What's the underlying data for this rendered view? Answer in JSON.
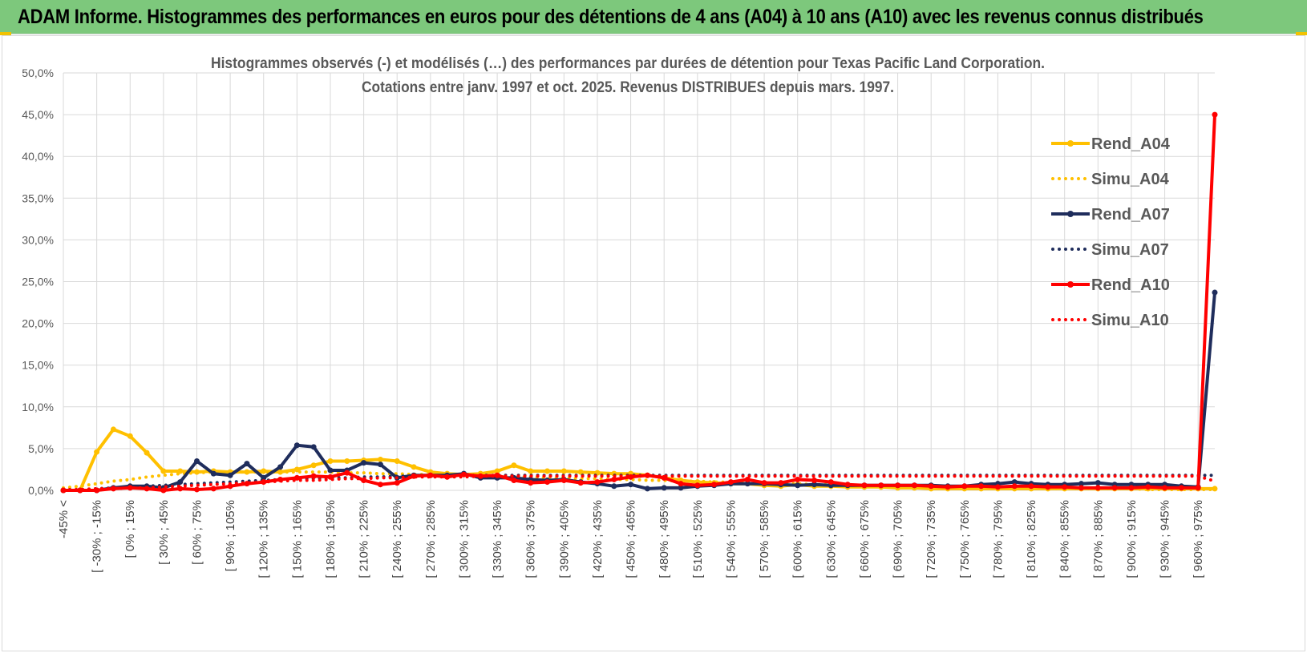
{
  "banner": {
    "title": "ADAM Informe. Histogrammes des performances en euros pour des détentions de 4 ans (A04) à 10 ans (A10) avec les revenus connus distribués"
  },
  "colors": {
    "banner_bg": "#7dc87c",
    "A04": "#ffc000",
    "A07": "#1f2d5c",
    "A10": "#ff0000",
    "grid": "#d9d9d9"
  },
  "chart_data": {
    "type": "line",
    "title_lines": [
      "Histogrammes observés (-) et modélisés (…) des performances par durées de détention pour Texas Pacific Land Corporation.",
      "Cotations entre janv. 1997 et oct. 2025.  Revenus DISTRIBUES depuis mars. 1997."
    ],
    "ylim": [
      0,
      50
    ],
    "y_ticks": [
      0,
      5,
      10,
      15,
      20,
      25,
      30,
      35,
      40,
      45,
      50
    ],
    "y_tick_labels": [
      "0,0%",
      "5,0%",
      "10,0%",
      "15,0%",
      "20,0%",
      "25,0%",
      "30,0%",
      "35,0%",
      "40,0%",
      "45,0%",
      "50,0%"
    ],
    "category_labels": [
      "-45% <",
      "[ -30% ; -15%",
      "[ 0% ; 15%",
      "[ 30% ; 45%",
      "[ 60% ; 75%",
      "[ 90% ; 105%",
      "[ 120% ; 135%",
      "[ 150% ; 165%",
      "[ 180% ; 195%",
      "[ 210% ; 225%",
      "[ 240% ; 255%",
      "[ 270% ; 285%",
      "[ 300% ; 315%",
      "[ 330% ; 345%",
      "[ 360% ; 375%",
      "[ 390% ; 405%",
      "[ 420% ; 435%",
      "[ 450% ; 465%",
      "[ 480% ; 495%",
      "[ 510% ; 525%",
      "[ 540% ; 555%",
      "[ 570% ; 585%",
      "[ 600% ; 615%",
      "[ 630% ; 645%",
      "[ 660% ; 675%",
      "[ 690% ; 705%",
      "[ 720% ; 735%",
      "[ 750% ; 765%",
      "[ 780% ; 795%",
      "[ 810% ; 825%",
      "[ 840% ; 855%",
      "[ 870% ; 885%",
      "[ 900% ; 915%",
      "[ 930% ; 945%",
      "[ 960% ; 975%"
    ],
    "n_points": 70,
    "series": [
      {
        "name": "Rend_A04",
        "style": "solid",
        "color": "#ffc000",
        "values": [
          0,
          0,
          4.6,
          7.3,
          6.5,
          4.5,
          2.3,
          2.3,
          2.2,
          2.3,
          2.2,
          2.2,
          2.3,
          2.2,
          2.5,
          3.0,
          3.5,
          3.5,
          3.6,
          3.7,
          3.5,
          2.8,
          2.2,
          2.0,
          1.9,
          2.0,
          2.3,
          3.0,
          2.3,
          2.3,
          2.3,
          2.2,
          2.1,
          2.0,
          2.0,
          1.8,
          1.5,
          1.2,
          1.0,
          0.9,
          0.8,
          0.8,
          0.6,
          0.5,
          0.7,
          0.5,
          0.5,
          0.4,
          0.4,
          0.4,
          0.3,
          0.3,
          0.2,
          0.2,
          0.2,
          0.2,
          0.2,
          0.2,
          0.2,
          0.2,
          0.2,
          0.2,
          0.2,
          0.2,
          0.2,
          0.2,
          0.2,
          0.2,
          0.2,
          0.2
        ]
      },
      {
        "name": "Simu_A04",
        "style": "dotted",
        "color": "#ffc000",
        "values": [
          0.3,
          0.5,
          0.8,
          1.1,
          1.3,
          1.6,
          1.8,
          2.0,
          2.1,
          2.2,
          2.2,
          2.2,
          2.2,
          2.2,
          2.2,
          2.2,
          2.2,
          2.1,
          2.1,
          2.0,
          2.0,
          1.9,
          1.9,
          1.8,
          1.8,
          1.7,
          1.7,
          1.6,
          1.6,
          1.5,
          1.5,
          1.4,
          1.4,
          1.3,
          1.3,
          1.2,
          1.2,
          1.1,
          1.1,
          1.0,
          1.0,
          0.9,
          0.9,
          0.8,
          0.8,
          0.7,
          0.7,
          0.6,
          0.6,
          0.5,
          0.5,
          0.5,
          0.4,
          0.4,
          0.4,
          0.3,
          0.3,
          0.3,
          0.3,
          0.2,
          0.2,
          0.2,
          0.2,
          0.2,
          0.2,
          0.1,
          0.1,
          0.1,
          0.1,
          0.1
        ]
      },
      {
        "name": "Rend_A07",
        "style": "solid",
        "color": "#1f2d5c",
        "values": [
          0,
          0,
          0,
          0.3,
          0.5,
          0.5,
          0.3,
          1.0,
          3.5,
          2.0,
          1.8,
          3.2,
          1.5,
          2.8,
          5.4,
          5.2,
          2.4,
          2.4,
          3.3,
          3.1,
          1.5,
          1.8,
          1.8,
          1.8,
          2.0,
          1.5,
          1.5,
          1.5,
          1.3,
          1.2,
          1.3,
          1.0,
          0.8,
          0.5,
          0.7,
          0.2,
          0.3,
          0.3,
          0.5,
          0.6,
          0.8,
          0.8,
          0.8,
          0.7,
          0.6,
          0.7,
          0.6,
          0.6,
          0.6,
          0.6,
          0.6,
          0.6,
          0.6,
          0.5,
          0.5,
          0.7,
          0.8,
          1.0,
          0.8,
          0.7,
          0.7,
          0.8,
          0.9,
          0.7,
          0.7,
          0.7,
          0.7,
          0.5,
          0.4,
          23.7
        ]
      },
      {
        "name": "Simu_A07",
        "style": "dotted",
        "color": "#1f2d5c",
        "values": [
          0.1,
          0.1,
          0.2,
          0.3,
          0.4,
          0.5,
          0.6,
          0.7,
          0.8,
          0.9,
          1.0,
          1.1,
          1.2,
          1.3,
          1.3,
          1.4,
          1.5,
          1.5,
          1.6,
          1.6,
          1.7,
          1.7,
          1.7,
          1.8,
          1.8,
          1.8,
          1.8,
          1.8,
          1.8,
          1.8,
          1.8,
          1.8,
          1.8,
          1.8,
          1.8,
          1.8,
          1.8,
          1.8,
          1.8,
          1.8,
          1.8,
          1.8,
          1.8,
          1.8,
          1.8,
          1.8,
          1.8,
          1.8,
          1.8,
          1.8,
          1.8,
          1.8,
          1.8,
          1.8,
          1.8,
          1.8,
          1.8,
          1.8,
          1.8,
          1.8,
          1.8,
          1.8,
          1.8,
          1.8,
          1.8,
          1.8,
          1.8,
          1.8,
          1.8,
          1.8
        ]
      },
      {
        "name": "Rend_A10",
        "style": "solid",
        "color": "#ff0000",
        "values": [
          0,
          0,
          0,
          0.2,
          0.3,
          0.2,
          0,
          0.2,
          0.1,
          0.2,
          0.5,
          0.8,
          1.0,
          1.3,
          1.5,
          1.7,
          1.6,
          2.1,
          1.2,
          0.7,
          0.9,
          1.7,
          1.8,
          1.6,
          1.9,
          1.7,
          1.8,
          1.2,
          0.9,
          1.0,
          1.2,
          0.9,
          1.0,
          1.3,
          1.6,
          1.8,
          1.5,
          0.8,
          0.6,
          0.7,
          1.0,
          1.3,
          0.9,
          0.9,
          1.3,
          1.2,
          1.0,
          0.7,
          0.6,
          0.6,
          0.6,
          0.6,
          0.5,
          0.4,
          0.5,
          0.5,
          0.4,
          0.5,
          0.5,
          0.4,
          0.4,
          0.3,
          0.3,
          0.3,
          0.3,
          0.4,
          0.3,
          0.3,
          0.3,
          45.0
        ]
      },
      {
        "name": "Simu_A10",
        "style": "dotted",
        "color": "#ff0000",
        "values": [
          0.1,
          0.1,
          0.2,
          0.2,
          0.3,
          0.3,
          0.4,
          0.5,
          0.6,
          0.7,
          0.8,
          0.9,
          1.0,
          1.1,
          1.2,
          1.2,
          1.3,
          1.4,
          1.4,
          1.5,
          1.5,
          1.6,
          1.6,
          1.6,
          1.6,
          1.7,
          1.7,
          1.7,
          1.7,
          1.7,
          1.7,
          1.7,
          1.7,
          1.7,
          1.7,
          1.7,
          1.7,
          1.7,
          1.7,
          1.7,
          1.7,
          1.7,
          1.7,
          1.7,
          1.7,
          1.7,
          1.7,
          1.7,
          1.7,
          1.7,
          1.7,
          1.7,
          1.7,
          1.7,
          1.7,
          1.7,
          1.7,
          1.7,
          1.7,
          1.7,
          1.7,
          1.7,
          1.7,
          1.7,
          1.7,
          1.7,
          1.7,
          1.7,
          1.7,
          1.1
        ]
      }
    ],
    "legend": [
      "Rend_A04",
      "Simu_A04",
      "Rend_A07",
      "Simu_A07",
      "Rend_A10",
      "Simu_A10"
    ],
    "legend_position": "right",
    "grid": true
  }
}
